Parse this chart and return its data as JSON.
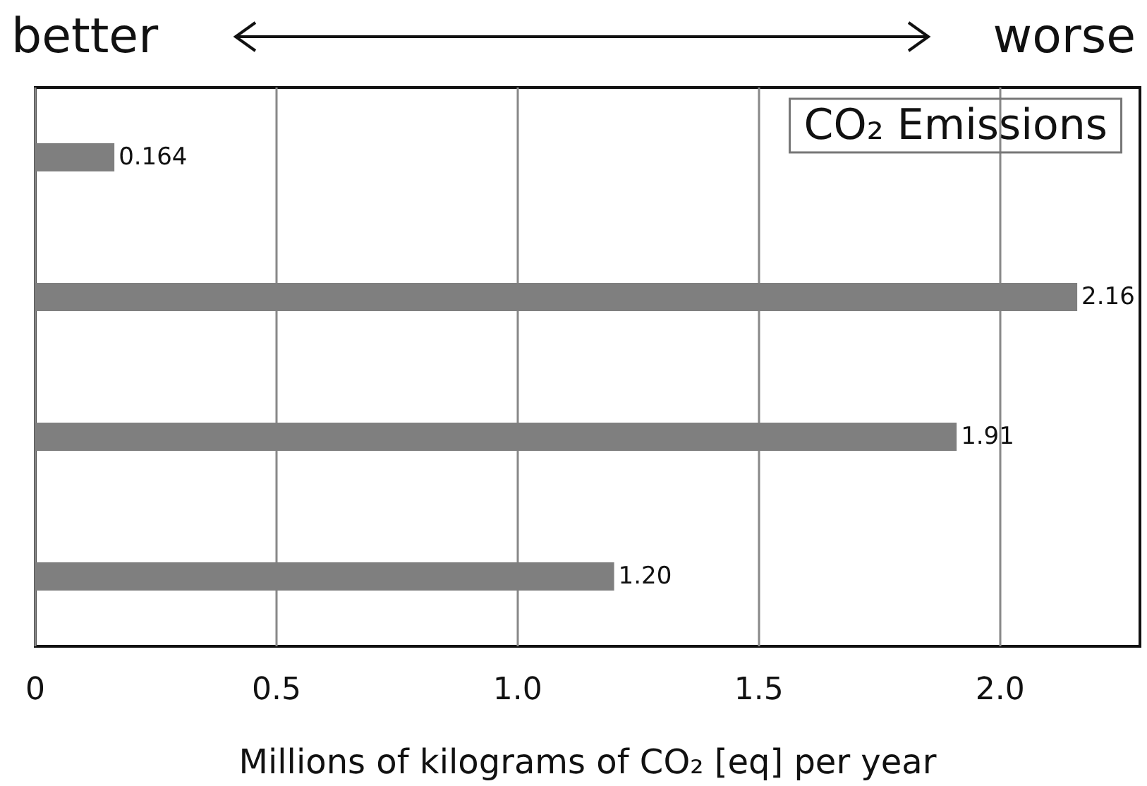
{
  "chart_data": {
    "type": "bar",
    "orientation": "horizontal",
    "title": "CO₂ Emissions",
    "xlabel": "Millions of kilograms of CO₂ [eq] per year",
    "annotations": [
      "better",
      "worse"
    ],
    "categories": [
      null,
      null,
      null,
      null
    ],
    "values": [
      0.164,
      2.16,
      1.91,
      1.2
    ],
    "value_labels": [
      "0.164",
      "2.16",
      "1.91",
      "1.20"
    ],
    "color": "#7f7f7f",
    "xlim": [
      0,
      2.29
    ],
    "xticks": [
      0,
      0.5,
      {
        "value": 1,
        "label": "1.0"
      },
      1.5,
      {
        "value": 2,
        "label": "2.0"
      }
    ],
    "grid": "x",
    "tick_labels": "x"
  }
}
